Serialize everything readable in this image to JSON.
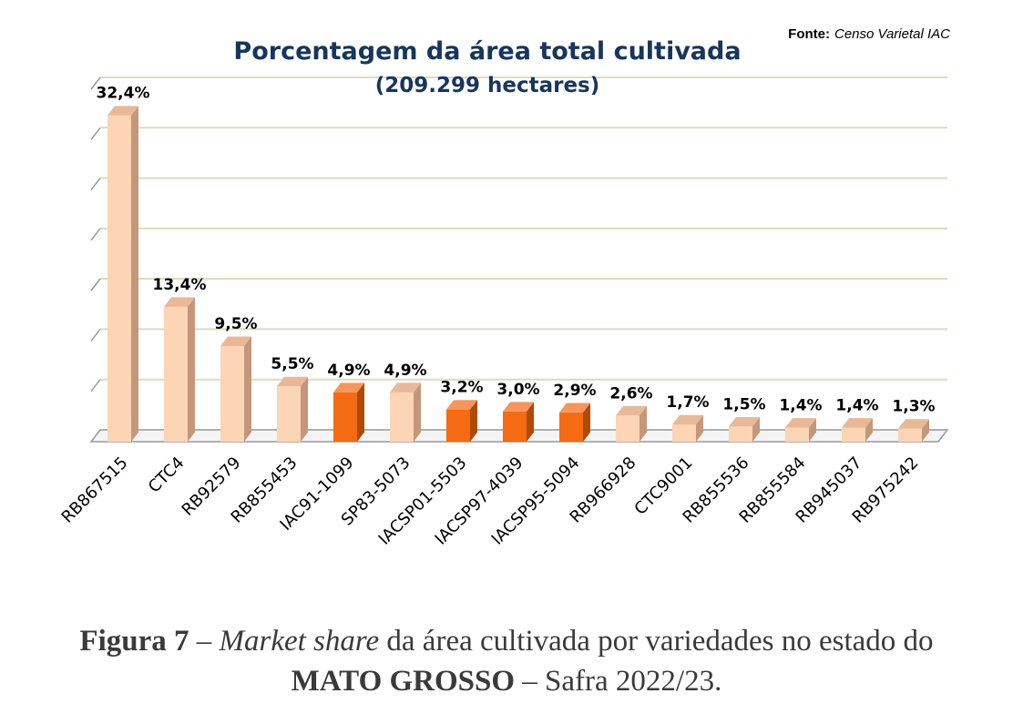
{
  "chart_data": {
    "type": "bar",
    "title": "Porcentagem da área total cultivada",
    "subtitle": "(209.299 hectares)",
    "source_label": "Fonte:",
    "source_text": "Censo Varietal  IAC",
    "categories": [
      "RB867515",
      "CTC4",
      "RB92579",
      "RB855453",
      "IAC91-1099",
      "SP83-5073",
      "IACSP01-5503",
      "IACSP97-4039",
      "IACSP95-5094",
      "RB966928",
      "CTC9001",
      "RB855536",
      "RB855584",
      "RB945037",
      "RB975242"
    ],
    "values": [
      32.4,
      13.4,
      9.5,
      5.5,
      4.9,
      4.9,
      3.2,
      3.0,
      2.9,
      2.6,
      1.7,
      1.5,
      1.4,
      1.4,
      1.3
    ],
    "value_labels": [
      "32,4%",
      "13,4%",
      "9,5%",
      "5,5%",
      "4,9%",
      "4,9%",
      "3,2%",
      "3,0%",
      "2,9%",
      "2,6%",
      "1,7%",
      "1,5%",
      "1,4%",
      "1,4%",
      "1,3%"
    ],
    "highlighted": [
      false,
      false,
      false,
      false,
      true,
      false,
      true,
      true,
      true,
      false,
      false,
      false,
      false,
      false,
      false
    ],
    "ylim": [
      0,
      35
    ],
    "grid": true,
    "colors": {
      "bar_front": "#fcd5b5",
      "bar_top": "#e9b896",
      "bar_side": "#c4977a",
      "hl_front": "#f46b12",
      "hl_top": "#f7955a",
      "hl_side": "#b04a08",
      "grid": "#dcdcbc",
      "axis": "#999999"
    }
  },
  "caption": {
    "fig_label": "Figura 7",
    "dash1": " – ",
    "italic": "Market share",
    "text1": " da área cultivada por variedades no estado do",
    "state": "MATO GROSSO",
    "dash2": " – ",
    "text2": "Safra 2022/23."
  }
}
